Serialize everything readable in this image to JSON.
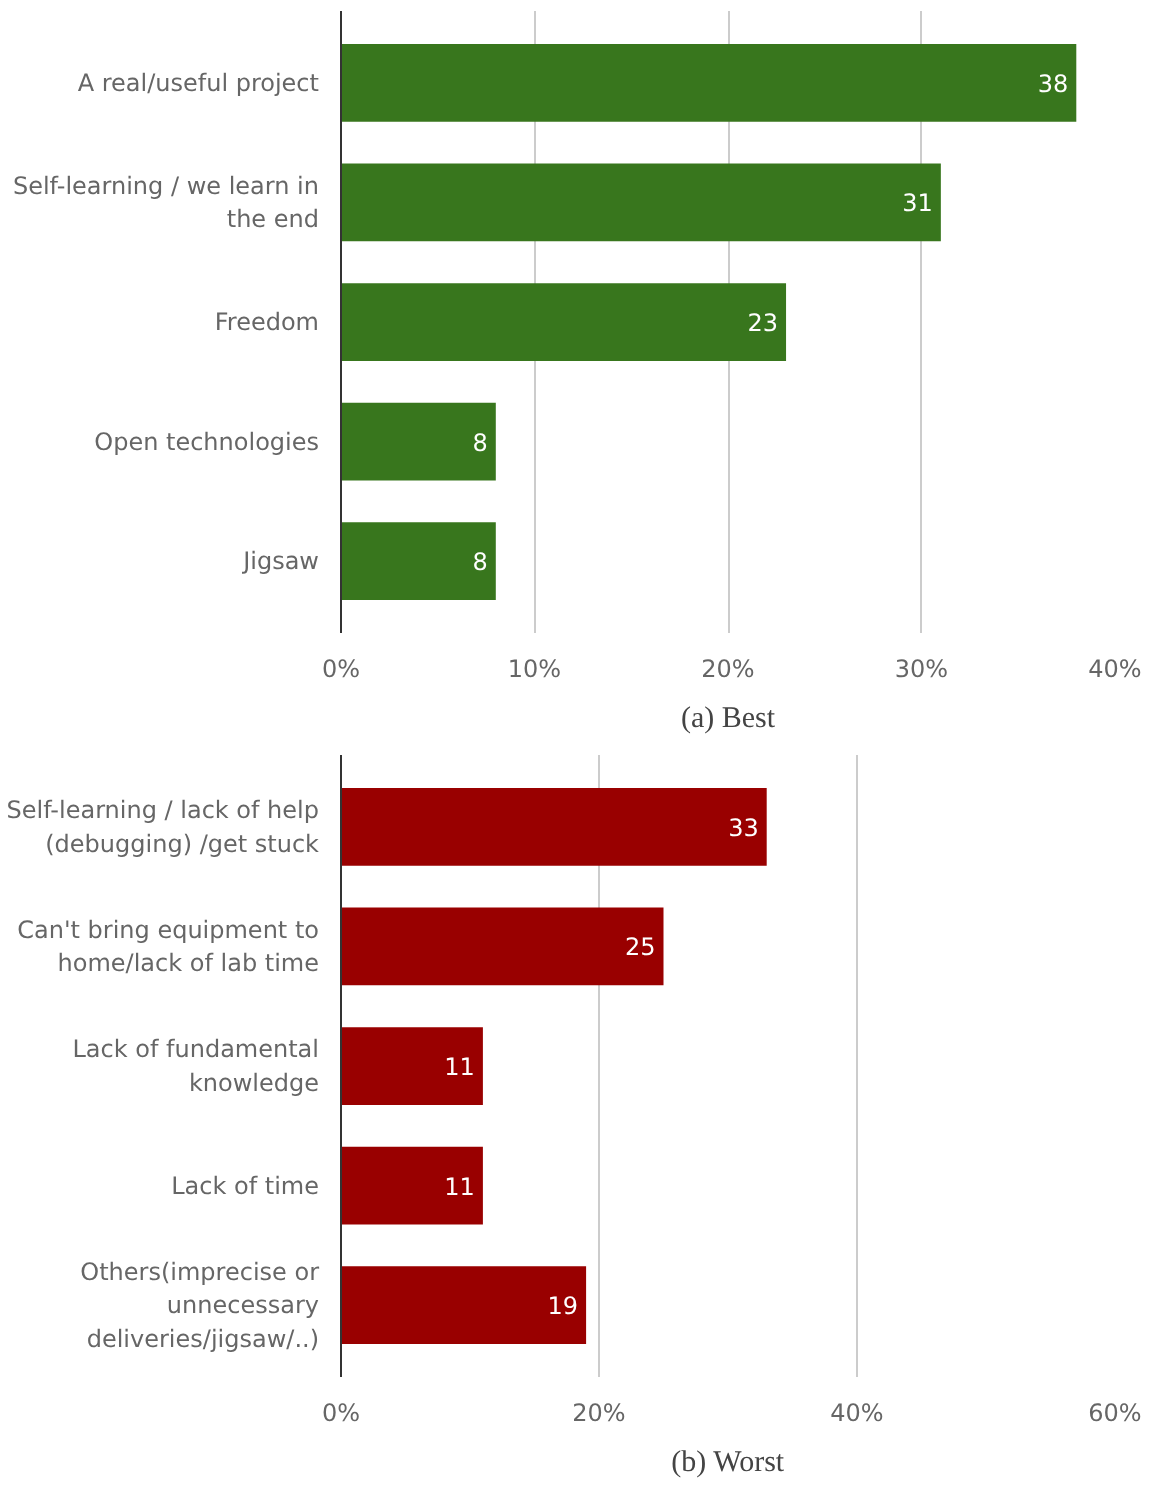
{
  "chart_data": [
    {
      "type": "bar",
      "orientation": "horizontal",
      "title": "(a) Best",
      "categories": [
        "A real/useful project",
        "Self-learning / we learn in the end",
        "Freedom",
        "Open technologies",
        "Jigsaw"
      ],
      "values": [
        38,
        31,
        23,
        8,
        8
      ],
      "color": "#38761d",
      "data_labels": true,
      "xlim": [
        0,
        40
      ],
      "xticks": [
        {
          "value": 0,
          "label": "0%"
        },
        {
          "value": 10,
          "label": "10%"
        },
        {
          "value": 20,
          "label": "20%"
        },
        {
          "value": 30,
          "label": "30%"
        },
        {
          "value": 40,
          "label": "40%"
        }
      ],
      "grid": "x"
    },
    {
      "type": "bar",
      "orientation": "horizontal",
      "title": "(b) Worst",
      "categories": [
        "Self-learning / lack of help (debugging) /get stuck",
        "Can't bring equipment to home/lack of lab time",
        "Lack of fundamental knowledge",
        "Lack of time",
        "Others(imprecise or unnecessary deliveries/jigsaw/..)"
      ],
      "values": [
        33,
        25,
        11,
        11,
        19
      ],
      "color": "#990000",
      "data_labels": true,
      "xlim": [
        0,
        60
      ],
      "xticks": [
        {
          "value": 0,
          "label": "0%"
        },
        {
          "value": 20,
          "label": "20%"
        },
        {
          "value": 40,
          "label": "40%"
        },
        {
          "value": 60,
          "label": "60%"
        }
      ],
      "grid": "x"
    }
  ]
}
